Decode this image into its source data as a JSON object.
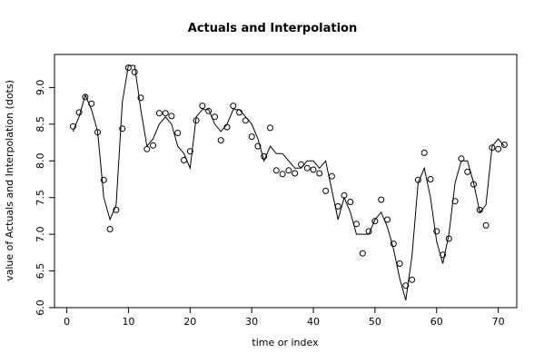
{
  "chart_data": {
    "type": "line",
    "title": "Actuals and Interpolation",
    "xlabel": "time or index",
    "ylabel": "value of Actuals and Interpolation (dots)",
    "xlim": [
      -2,
      73
    ],
    "ylim": [
      6.0,
      9.45
    ],
    "x_ticks": [
      0,
      10,
      20,
      30,
      40,
      50,
      60,
      70
    ],
    "y_ticks": [
      6.0,
      6.5,
      7.0,
      7.5,
      8.0,
      8.5,
      9.0
    ],
    "x_tick_labels": [
      "0",
      "10",
      "20",
      "30",
      "40",
      "50",
      "60",
      "70"
    ],
    "y_tick_labels": [
      "6.0",
      "6.5",
      "7.0",
      "7.5",
      "8.0",
      "8.5",
      "9.0"
    ],
    "grid": false,
    "legend": "none",
    "series": [
      {
        "kind": "points",
        "x": [
          1,
          2,
          3,
          4,
          5,
          6,
          7,
          8,
          9,
          10,
          11,
          12,
          13,
          14,
          15,
          16,
          17,
          18,
          19,
          20,
          21,
          22,
          23,
          24,
          25,
          26,
          27,
          28,
          29,
          30,
          31,
          32,
          33,
          34,
          35,
          36,
          37,
          38,
          39,
          40,
          41,
          42,
          43,
          44,
          45,
          46,
          47,
          48,
          49,
          50,
          51,
          52,
          53,
          54,
          55,
          56,
          57,
          58,
          59,
          60,
          61,
          62,
          63,
          64,
          65,
          66,
          67,
          68,
          69,
          70,
          71
        ],
        "values": [
          8.47,
          8.66,
          8.87,
          8.78,
          8.39,
          7.74,
          7.07,
          7.33,
          8.44,
          9.27,
          9.21,
          8.86,
          8.16,
          8.21,
          8.65,
          8.65,
          8.61,
          8.38,
          8.01,
          8.13,
          8.55,
          8.75,
          8.68,
          8.6,
          8.28,
          8.46,
          8.75,
          8.66,
          8.55,
          8.33,
          8.2,
          8.06,
          8.45,
          7.87,
          7.82,
          7.87,
          7.83,
          7.95,
          7.9,
          7.88,
          7.83,
          7.59,
          7.79,
          7.38,
          7.53,
          7.44,
          7.14,
          6.74,
          7.04,
          7.18,
          7.47,
          7.2,
          6.87,
          6.6,
          6.3,
          6.38,
          7.74,
          8.11,
          7.75,
          7.04,
          6.72,
          6.94,
          7.45,
          8.03,
          7.85,
          7.68,
          7.33,
          7.12,
          8.18,
          8.16,
          8.22
        ]
      },
      {
        "kind": "line",
        "x": [
          1,
          2,
          3,
          4,
          5,
          6,
          7,
          8,
          9,
          10,
          11,
          12,
          13,
          14,
          15,
          16,
          17,
          18,
          19,
          20,
          21,
          22,
          23,
          24,
          25,
          26,
          27,
          28,
          29,
          30,
          31,
          32,
          33,
          34,
          35,
          36,
          37,
          38,
          39,
          40,
          41,
          42,
          43,
          44,
          45,
          46,
          47,
          48,
          49,
          50,
          51,
          52,
          53,
          54,
          55,
          56,
          57,
          58,
          59,
          60,
          61,
          62,
          63,
          64,
          65,
          66,
          67,
          68,
          69,
          70,
          71
        ],
        "values": [
          8.4,
          8.6,
          8.9,
          8.7,
          8.4,
          7.5,
          7.2,
          7.4,
          8.8,
          9.3,
          9.3,
          8.7,
          8.2,
          8.3,
          8.5,
          8.6,
          8.5,
          8.2,
          8.1,
          7.9,
          8.6,
          8.7,
          8.7,
          8.5,
          8.4,
          8.5,
          8.7,
          8.7,
          8.6,
          8.5,
          8.3,
          8.0,
          8.2,
          8.1,
          8.1,
          8.0,
          7.9,
          7.9,
          8.0,
          8.0,
          7.9,
          8.0,
          7.6,
          7.2,
          7.5,
          7.3,
          7.0,
          7.0,
          7.0,
          7.2,
          7.3,
          7.1,
          6.8,
          6.4,
          6.1,
          6.7,
          7.7,
          7.9,
          7.5,
          6.9,
          6.6,
          7.0,
          7.7,
          8.0,
          8.0,
          7.7,
          7.3,
          7.4,
          8.2,
          8.3,
          8.2
        ]
      }
    ]
  }
}
